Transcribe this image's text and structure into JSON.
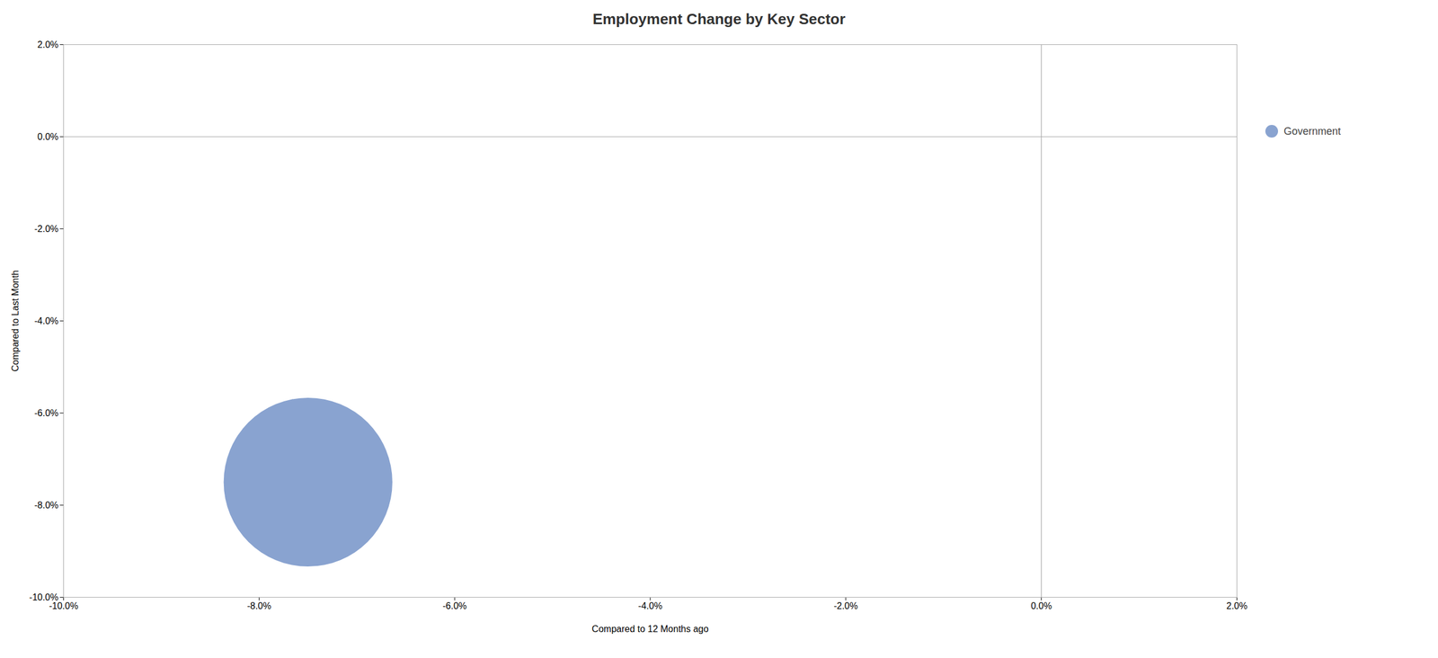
{
  "chart_data": {
    "type": "scatter",
    "title": "Employment Change by Key Sector",
    "xlabel": "Compared to 12 Months ago",
    "ylabel": "Compared to Last Month",
    "xlim": [
      -0.1,
      0.02
    ],
    "ylim": [
      -0.1,
      0.02
    ],
    "xticks": [
      {
        "value": -0.1,
        "label": "-10.0%"
      },
      {
        "value": -0.08,
        "label": "-8.0%"
      },
      {
        "value": -0.06,
        "label": "-6.0%"
      },
      {
        "value": -0.04,
        "label": "-4.0%"
      },
      {
        "value": -0.02,
        "label": "-2.0%"
      },
      {
        "value": 0.0,
        "label": "0.0%"
      },
      {
        "value": 0.02,
        "label": "2.0%"
      }
    ],
    "yticks": [
      {
        "value": -0.1,
        "label": "-10.0%"
      },
      {
        "value": -0.08,
        "label": "-8.0%"
      },
      {
        "value": -0.06,
        "label": "-6.0%"
      },
      {
        "value": -0.04,
        "label": "-4.0%"
      },
      {
        "value": -0.02,
        "label": "-2.0%"
      },
      {
        "value": 0.0,
        "label": "0.0%"
      },
      {
        "value": 0.02,
        "label": "2.0%"
      }
    ],
    "series": [
      {
        "name": "Government",
        "color": "#6B8CC4",
        "x": [
          -0.075
        ],
        "y": [
          -0.075
        ],
        "size": [
          35000
        ]
      }
    ],
    "hline_y": 0.0,
    "vline_x": 0.0,
    "grid": false,
    "legend": "right"
  }
}
